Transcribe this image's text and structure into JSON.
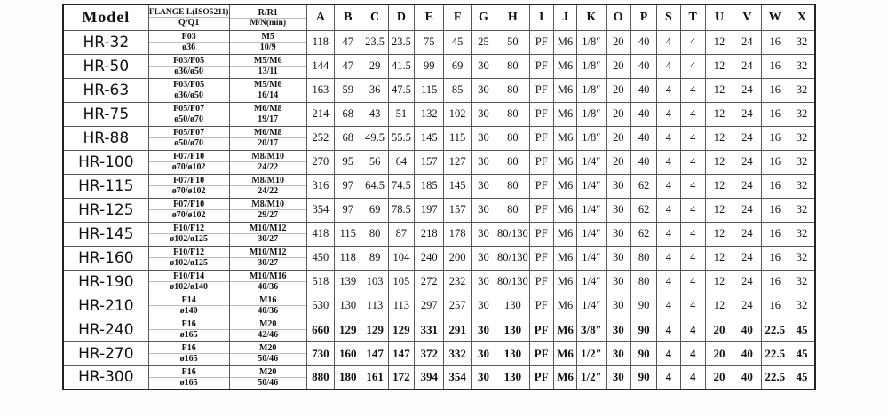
{
  "table": {
    "header": {
      "model_label": "Model",
      "flange_line1": "FLANGE L(ISO5211)",
      "flange_line2": "Q/Q1",
      "rr1_line1": "R/R1",
      "rr1_line2": "M/N(min)",
      "dim_columns": [
        "A",
        "B",
        "C",
        "D",
        "E",
        "F",
        "G",
        "H",
        "I",
        "J",
        "K",
        "O",
        "P",
        "S",
        "T",
        "U",
        "V",
        "W",
        "X"
      ]
    },
    "rows": [
      {
        "model": "HR-32",
        "flange": "F03",
        "q": "ø36",
        "r": "M5",
        "mn": "10/9",
        "bold": false,
        "dims": [
          "118",
          "47",
          "23.5",
          "23.5",
          "75",
          "45",
          "25",
          "50",
          "PF",
          "M6",
          "1/8″",
          "20",
          "40",
          "4",
          "4",
          "12",
          "24",
          "16",
          "32"
        ]
      },
      {
        "model": "HR-50",
        "flange": "F03/F05",
        "q": "ø36/ø50",
        "r": "M5/M6",
        "mn": "13/11",
        "bold": false,
        "dims": [
          "144",
          "47",
          "29",
          "41.5",
          "99",
          "69",
          "30",
          "80",
          "PF",
          "M6",
          "1/8″",
          "20",
          "40",
          "4",
          "4",
          "12",
          "24",
          "16",
          "32"
        ]
      },
      {
        "model": "HR-63",
        "flange": "F03/F05",
        "q": "ø36/ø50",
        "r": "M5/M6",
        "mn": "16/14",
        "bold": false,
        "dims": [
          "163",
          "59",
          "36",
          "47.5",
          "115",
          "85",
          "30",
          "80",
          "PF",
          "M6",
          "1/8″",
          "20",
          "40",
          "4",
          "4",
          "12",
          "24",
          "16",
          "32"
        ]
      },
      {
        "model": "HR-75",
        "flange": "F05/F07",
        "q": "ø50/ø70",
        "r": "M6/M8",
        "mn": "19/17",
        "bold": false,
        "dims": [
          "214",
          "68",
          "43",
          "51",
          "132",
          "102",
          "30",
          "80",
          "PF",
          "M6",
          "1/8″",
          "20",
          "40",
          "4",
          "4",
          "12",
          "24",
          "16",
          "32"
        ]
      },
      {
        "model": "HR-88",
        "flange": "F05/F07",
        "q": "ø50/ø70",
        "r": "M6/M8",
        "mn": "20/17",
        "bold": false,
        "dims": [
          "252",
          "68",
          "49.5",
          "55.5",
          "145",
          "115",
          "30",
          "80",
          "PF",
          "M6",
          "1/8″",
          "20",
          "40",
          "4",
          "4",
          "12",
          "24",
          "16",
          "32"
        ]
      },
      {
        "model": "HR-100",
        "flange": "F07/F10",
        "q": "ø70/ø102",
        "r": "M8/M10",
        "mn": "24/22",
        "bold": false,
        "dims": [
          "270",
          "95",
          "56",
          "64",
          "157",
          "127",
          "30",
          "80",
          "PF",
          "M6",
          "1/4″",
          "20",
          "40",
          "4",
          "4",
          "12",
          "24",
          "16",
          "32"
        ]
      },
      {
        "model": "HR-115",
        "flange": "F07/F10",
        "q": "ø70/ø102",
        "r": "M8/M10",
        "mn": "24/22",
        "bold": false,
        "dims": [
          "316",
          "97",
          "64.5",
          "74.5",
          "185",
          "145",
          "30",
          "80",
          "PF",
          "M6",
          "1/4″",
          "30",
          "62",
          "4",
          "4",
          "12",
          "24",
          "16",
          "32"
        ]
      },
      {
        "model": "HR-125",
        "flange": "F07/F10",
        "q": "ø70/ø102",
        "r": "M8/M10",
        "mn": "29/27",
        "bold": false,
        "dims": [
          "354",
          "97",
          "69",
          "78.5",
          "197",
          "157",
          "30",
          "80",
          "PF",
          "M6",
          "1/4″",
          "30",
          "62",
          "4",
          "4",
          "12",
          "24",
          "16",
          "32"
        ]
      },
      {
        "model": "HR-145",
        "flange": "F10/F12",
        "q": "ø102/ø125",
        "r": "M10/M12",
        "mn": "30/27",
        "bold": false,
        "dims": [
          "418",
          "115",
          "80",
          "87",
          "218",
          "178",
          "30",
          "80/130",
          "PF",
          "M6",
          "1/4″",
          "30",
          "62",
          "4",
          "4",
          "12",
          "24",
          "16",
          "32"
        ]
      },
      {
        "model": "HR-160",
        "flange": "F10/F12",
        "q": "ø102/ø125",
        "r": "M10/M12",
        "mn": "30/27",
        "bold": false,
        "dims": [
          "450",
          "118",
          "89",
          "104",
          "240",
          "200",
          "30",
          "80/130",
          "PF",
          "M6",
          "1/4″",
          "30",
          "80",
          "4",
          "4",
          "12",
          "24",
          "16",
          "32"
        ]
      },
      {
        "model": "HR-190",
        "flange": "F10/F14",
        "q": "ø102/ø140",
        "r": "M10/M16",
        "mn": "40/36",
        "bold": false,
        "dims": [
          "518",
          "139",
          "103",
          "105",
          "272",
          "232",
          "30",
          "80/130",
          "PF",
          "M6",
          "1/4″",
          "30",
          "80",
          "4",
          "4",
          "12",
          "24",
          "16",
          "32"
        ]
      },
      {
        "model": "HR-210",
        "flange": "F14",
        "q": "ø140",
        "r": "M16",
        "mn": "40/36",
        "bold": false,
        "dims": [
          "530",
          "130",
          "113",
          "113",
          "297",
          "257",
          "30",
          "130",
          "PF",
          "M6",
          "1/4″",
          "30",
          "90",
          "4",
          "4",
          "12",
          "24",
          "16",
          "32"
        ]
      },
      {
        "model": "HR-240",
        "flange": "F16",
        "q": "ø165",
        "r": "M20",
        "mn": "42/46",
        "bold": true,
        "dims": [
          "660",
          "129",
          "129",
          "129",
          "331",
          "291",
          "30",
          "130",
          "PF",
          "M6",
          "3/8″",
          "30",
          "90",
          "4",
          "4",
          "20",
          "40",
          "22.5",
          "45"
        ]
      },
      {
        "model": "HR-270",
        "flange": "F16",
        "q": "ø165",
        "r": "M20",
        "mn": "50/46",
        "bold": true,
        "dims": [
          "730",
          "160",
          "147",
          "147",
          "372",
          "332",
          "30",
          "130",
          "PF",
          "M6",
          "1/2″",
          "30",
          "90",
          "4",
          "4",
          "20",
          "40",
          "22.5",
          "45"
        ]
      },
      {
        "model": "HR-300",
        "flange": "F16",
        "q": "ø165",
        "r": "M20",
        "mn": "50/46",
        "bold": true,
        "dims": [
          "880",
          "180",
          "161",
          "172",
          "394",
          "354",
          "30",
          "130",
          "PF",
          "M6",
          "1/2″",
          "30",
          "90",
          "4",
          "4",
          "20",
          "40",
          "22.5",
          "45"
        ]
      }
    ]
  }
}
